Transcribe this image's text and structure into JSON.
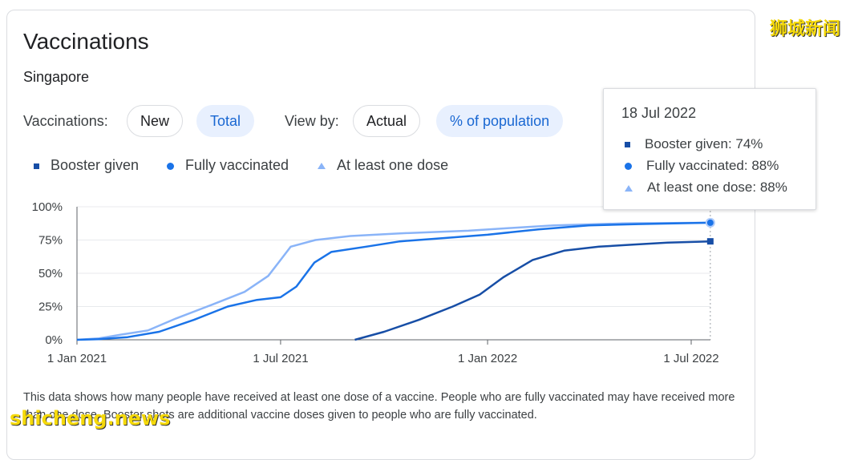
{
  "card": {
    "title": "Vaccinations",
    "subtitle": "Singapore",
    "description": "This data shows how many people have received at least one dose of a vaccine. People who are fully vaccinated may have received more than one dose. Booster shots are additional vaccine doses given to people who are fully vaccinated."
  },
  "controls": {
    "vaccinations_label": "Vaccinations:",
    "new_label": "New",
    "total_label": "Total",
    "viewby_label": "View by:",
    "actual_label": "Actual",
    "percent_label": "% of population",
    "selected": [
      "Total",
      "% of population"
    ]
  },
  "tooltip": {
    "date": "18 Jul 2022",
    "rows": [
      {
        "label": "Booster given: 74%"
      },
      {
        "label": "Fully vaccinated: 88%"
      },
      {
        "label": "At least one dose: 88%"
      }
    ]
  },
  "watermarks": {
    "top_right": "狮城新闻",
    "bottom_left": "shicheng.news"
  },
  "colors": {
    "booster": "#174ea6",
    "fully": "#1a73e8",
    "atleast": "#8ab4f8",
    "grid": "#e8eaed"
  },
  "chart_data": {
    "type": "line",
    "x_type": "date",
    "x_ticks": [
      "1 Jan 2021",
      "1 Jul 2021",
      "1 Jan 2022",
      "1 Jul 2022"
    ],
    "y_ticks": [
      "0%",
      "25%",
      "50%",
      "75%",
      "100%"
    ],
    "ylim": [
      0,
      100
    ],
    "xlim": [
      "2021-01-01",
      "2022-07-18"
    ],
    "grid": true,
    "legend_position": "top-left",
    "hover_date": "2022-07-18",
    "series": [
      {
        "name": "Booster given",
        "marker": "square",
        "points": [
          [
            "2021-09-05",
            0
          ],
          [
            "2021-10-01",
            6
          ],
          [
            "2021-11-01",
            15
          ],
          [
            "2021-12-01",
            25
          ],
          [
            "2021-12-25",
            34
          ],
          [
            "2022-01-15",
            47
          ],
          [
            "2022-02-10",
            60
          ],
          [
            "2022-03-10",
            67
          ],
          [
            "2022-04-10",
            70
          ],
          [
            "2022-05-10",
            71.5
          ],
          [
            "2022-06-10",
            73
          ],
          [
            "2022-07-18",
            74
          ]
        ]
      },
      {
        "name": "Fully vaccinated",
        "marker": "circle",
        "points": [
          [
            "2021-01-01",
            0
          ],
          [
            "2021-01-20",
            0.5
          ],
          [
            "2021-02-15",
            2
          ],
          [
            "2021-03-15",
            6
          ],
          [
            "2021-04-15",
            15
          ],
          [
            "2021-05-15",
            25
          ],
          [
            "2021-06-10",
            30
          ],
          [
            "2021-07-01",
            32
          ],
          [
            "2021-07-15",
            40
          ],
          [
            "2021-07-31",
            58
          ],
          [
            "2021-08-15",
            66
          ],
          [
            "2021-09-15",
            70
          ],
          [
            "2021-10-15",
            74
          ],
          [
            "2021-12-01",
            77
          ],
          [
            "2022-01-01",
            79
          ],
          [
            "2022-02-15",
            83
          ],
          [
            "2022-04-01",
            86
          ],
          [
            "2022-05-15",
            87
          ],
          [
            "2022-07-18",
            88
          ]
        ]
      },
      {
        "name": "At least one dose",
        "marker": "triangle",
        "points": [
          [
            "2021-01-01",
            0
          ],
          [
            "2021-01-20",
            1
          ],
          [
            "2021-02-10",
            4
          ],
          [
            "2021-03-05",
            7
          ],
          [
            "2021-03-30",
            16
          ],
          [
            "2021-04-30",
            26
          ],
          [
            "2021-05-30",
            36
          ],
          [
            "2021-06-20",
            48
          ],
          [
            "2021-07-01",
            60
          ],
          [
            "2021-07-10",
            70
          ],
          [
            "2021-08-01",
            75
          ],
          [
            "2021-09-01",
            78
          ],
          [
            "2021-10-15",
            80
          ],
          [
            "2021-12-15",
            82
          ],
          [
            "2022-01-20",
            84
          ],
          [
            "2022-03-01",
            86
          ],
          [
            "2022-05-01",
            87.5
          ],
          [
            "2022-07-18",
            88
          ]
        ]
      }
    ]
  }
}
